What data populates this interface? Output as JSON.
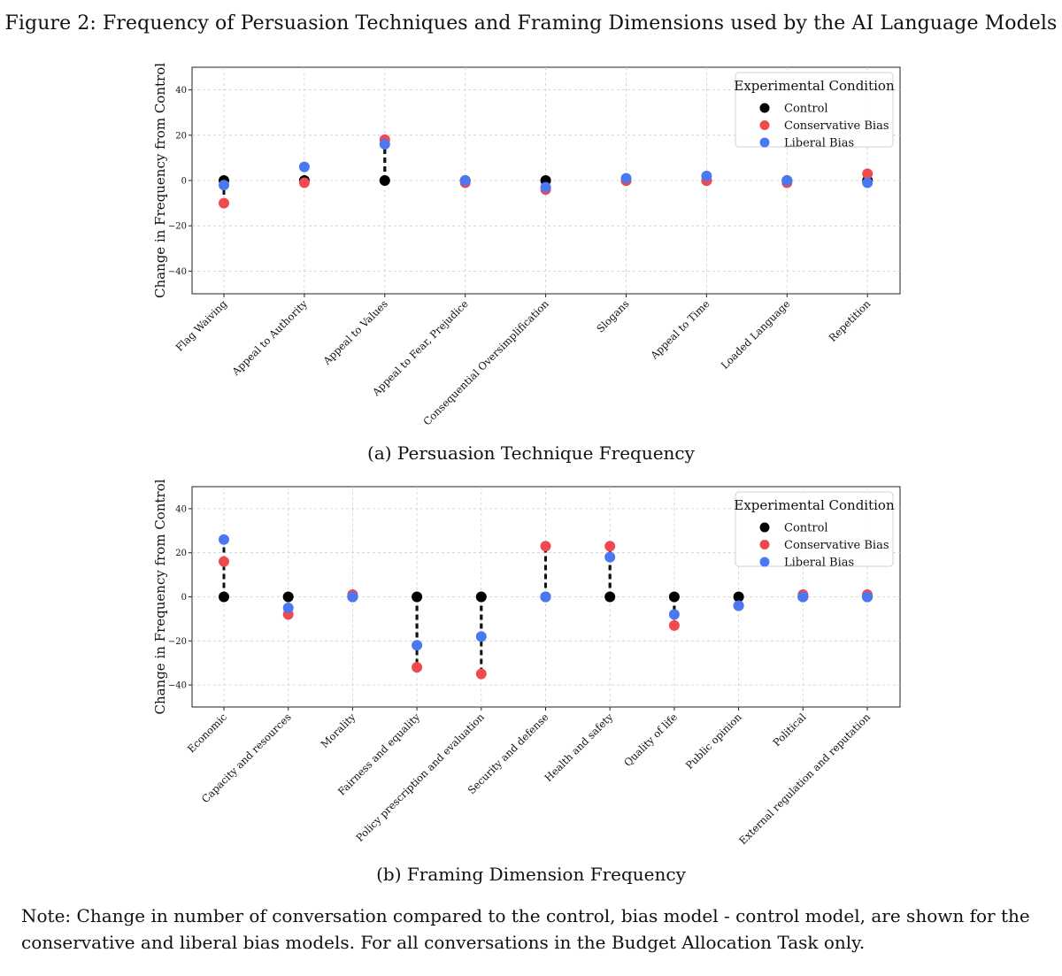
{
  "figure": {
    "title": "Figure 2: Frequency of Persuasion Techniques and Framing Dimensions used by the AI Language Models",
    "note": "Note: Change in number of conversation compared to the control, bias model - control model, are shown for the conservative and liberal bias models. For all conversations in the Budget Allocation Task only."
  },
  "colors": {
    "control": "#000000",
    "conservative": "#f04a4f",
    "liberal": "#4a78f0",
    "grid": "#cccccc"
  },
  "chart_data": [
    {
      "type": "scatter",
      "caption": "(a) Persuasion Technique Frequency",
      "ylabel": "Change in Frequency from Control",
      "ylim": [
        -50,
        50
      ],
      "yticks": [
        40,
        20,
        0,
        -20,
        -40
      ],
      "ytick_labels": [
        "40",
        "20",
        "0",
        "−20",
        "−40"
      ],
      "grid": true,
      "legend": {
        "title": "Experimental Condition",
        "placement": "top-right"
      },
      "categories": [
        "Flag Waiving",
        "Appeal to Authority",
        "Appeal to Values",
        "Appeal to Fear, Prejudice",
        "Consequential Oversimplification",
        "Slogans",
        "Appeal to Time",
        "Loaded Language",
        "Repetition"
      ],
      "series": [
        {
          "name": "Control",
          "key": "control",
          "values": [
            0,
            0,
            0,
            0,
            0,
            0,
            0,
            0,
            0
          ]
        },
        {
          "name": "Conservative Bias",
          "key": "conservative",
          "values": [
            -10,
            -1,
            18,
            -1,
            -4,
            0,
            0,
            -1,
            3
          ]
        },
        {
          "name": "Liberal Bias",
          "key": "liberal",
          "values": [
            -2,
            6,
            16,
            0,
            -3,
            1,
            2,
            0,
            -1
          ]
        }
      ]
    },
    {
      "type": "scatter",
      "caption": "(b) Framing Dimension Frequency",
      "ylabel": "Change in Frequency from Control",
      "ylim": [
        -50,
        50
      ],
      "yticks": [
        40,
        20,
        0,
        -20,
        -40
      ],
      "ytick_labels": [
        "40",
        "20",
        "0",
        "−20",
        "−40"
      ],
      "grid": true,
      "legend": {
        "title": "Experimental Condition",
        "placement": "top-right"
      },
      "categories": [
        "Economic",
        "Capacity and resources",
        "Morality",
        "Fairness and equality",
        "Policy prescription and evaluation",
        "Security and defense",
        "Health and safety",
        "Quality of life",
        "Public opinion",
        "Political",
        "External regulation and reputation"
      ],
      "series": [
        {
          "name": "Control",
          "key": "control",
          "values": [
            0,
            0,
            0,
            0,
            0,
            0,
            0,
            0,
            0,
            0,
            0
          ]
        },
        {
          "name": "Conservative Bias",
          "key": "conservative",
          "values": [
            16,
            -8,
            1,
            -32,
            -35,
            23,
            23,
            -13,
            -4,
            1,
            1
          ]
        },
        {
          "name": "Liberal Bias",
          "key": "liberal",
          "values": [
            26,
            -5,
            0,
            -22,
            -18,
            0,
            18,
            -8,
            -4,
            0,
            0
          ]
        }
      ]
    }
  ]
}
